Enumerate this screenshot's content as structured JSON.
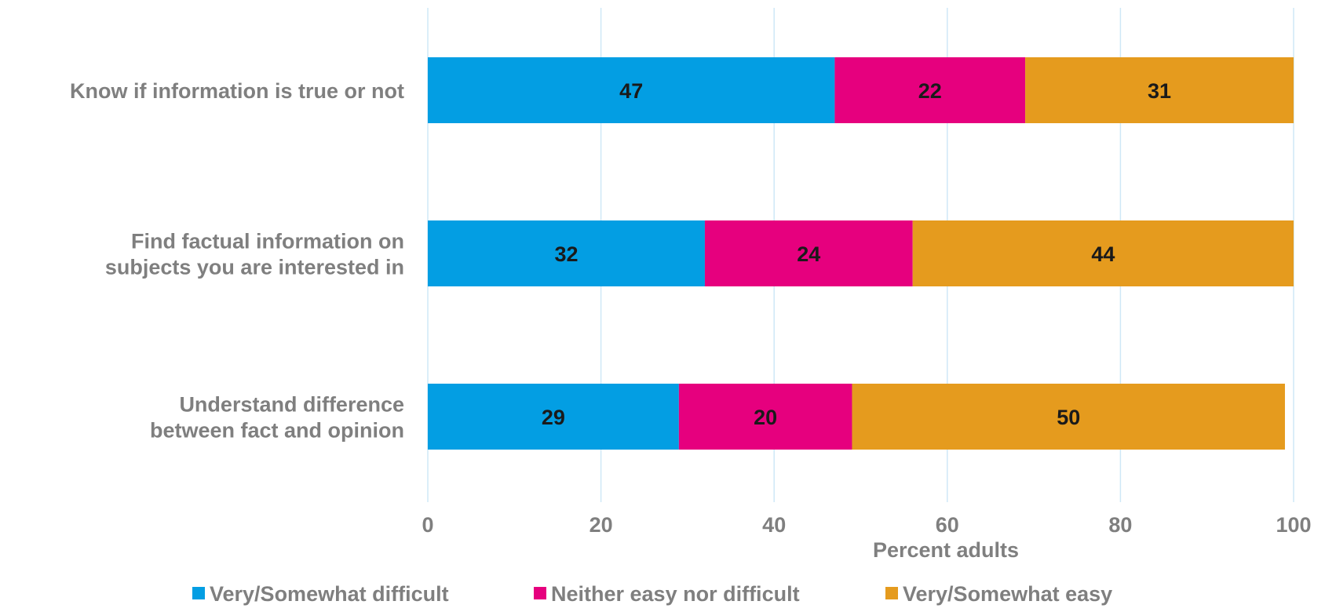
{
  "chart_data": {
    "type": "bar",
    "orientation": "horizontal",
    "stacked": true,
    "categories": [
      [
        "Know if information is true or not"
      ],
      [
        "Find factual information on",
        "subjects you are interested in"
      ],
      [
        "Understand difference",
        "between fact and opinion"
      ]
    ],
    "series": [
      {
        "name": "Very/Somewhat difficult",
        "color": "#039ee3",
        "values": [
          47,
          32,
          29
        ]
      },
      {
        "name": "Neither easy nor difficult",
        "color": "#e6007e",
        "values": [
          22,
          24,
          20
        ]
      },
      {
        "name": "Very/Somewhat easy",
        "color": "#e59b1e",
        "values": [
          31,
          44,
          50
        ]
      }
    ],
    "xlabel": "Percent adults",
    "xlim": [
      0,
      100
    ],
    "xticks": [
      0,
      20,
      40,
      60,
      80,
      100
    ],
    "grid": "vertical",
    "data_labels": true,
    "legend_position": "bottom"
  }
}
